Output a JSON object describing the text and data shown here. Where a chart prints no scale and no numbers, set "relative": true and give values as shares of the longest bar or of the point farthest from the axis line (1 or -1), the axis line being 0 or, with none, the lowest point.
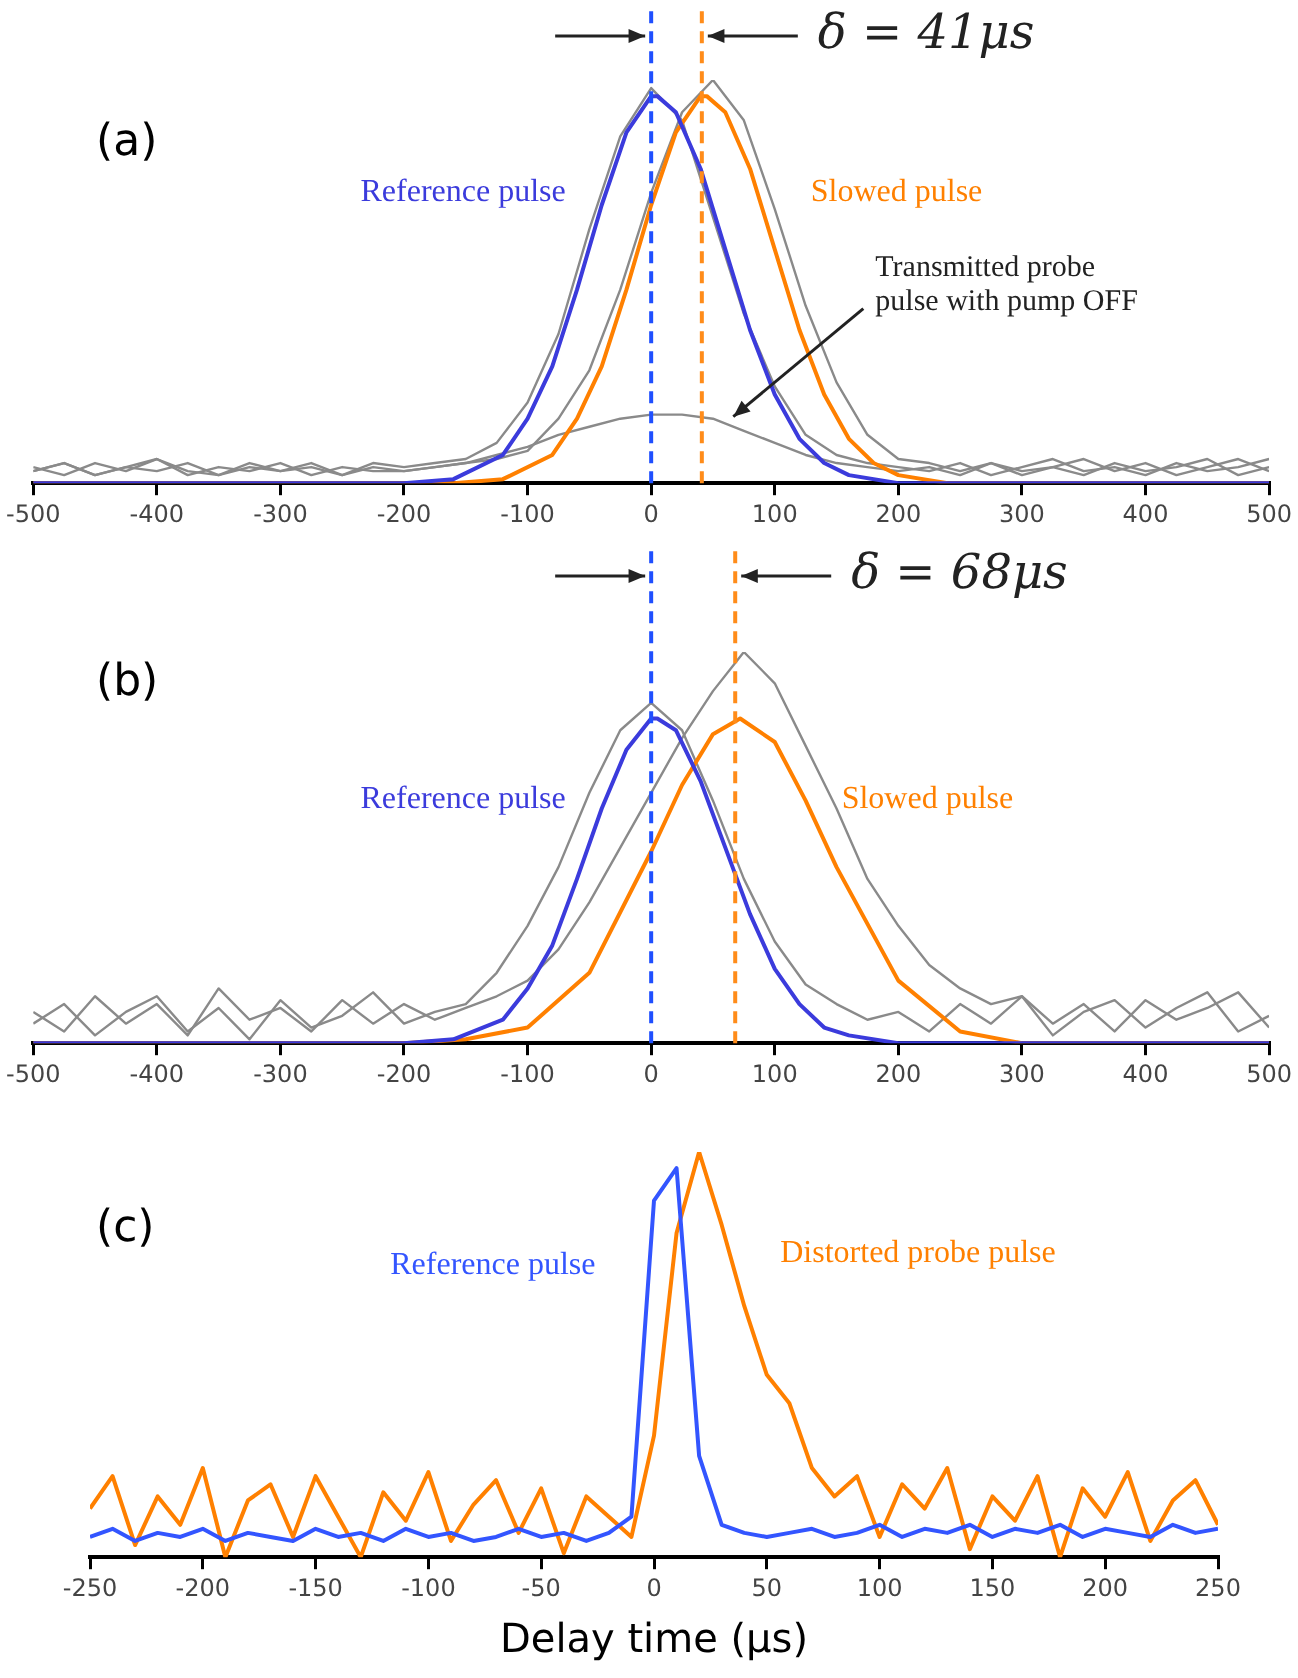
{
  "chart_data": [
    {
      "type": "line",
      "title": "(a)",
      "relative": true,
      "xlim": [
        -500,
        500
      ],
      "xticks": [
        -500,
        -400,
        -300,
        -200,
        -100,
        0,
        100,
        200,
        300,
        400,
        500
      ],
      "x": [
        -500,
        -475,
        -450,
        -425,
        -400,
        -375,
        -350,
        -325,
        -300,
        -275,
        -250,
        -225,
        -200,
        -175,
        -150,
        -125,
        -100,
        -75,
        -50,
        -25,
        0,
        25,
        50,
        75,
        100,
        125,
        150,
        175,
        200,
        225,
        250,
        275,
        300,
        325,
        350,
        375,
        400,
        425,
        450,
        475,
        500
      ],
      "series": [
        {
          "name": "Reference pulse",
          "color": "#3b3bdc",
          "x": [
            -500,
            -200,
            -160,
            -120,
            -100,
            -80,
            -60,
            -40,
            -20,
            0,
            5,
            20,
            40,
            60,
            80,
            100,
            120,
            140,
            160,
            200,
            500
          ],
          "values": [
            0,
            0,
            0.01,
            0.07,
            0.16,
            0.29,
            0.48,
            0.69,
            0.87,
            0.96,
            0.96,
            0.92,
            0.78,
            0.58,
            0.38,
            0.22,
            0.11,
            0.05,
            0.02,
            0,
            0
          ]
        },
        {
          "name": "Slowed pulse",
          "color": "#ff8000",
          "x": [
            -500,
            -160,
            -120,
            -80,
            -60,
            -40,
            -20,
            0,
            20,
            40,
            45,
            60,
            80,
            100,
            120,
            140,
            160,
            180,
            200,
            240,
            500
          ],
          "values": [
            0,
            0,
            0.01,
            0.07,
            0.16,
            0.29,
            0.48,
            0.69,
            0.87,
            0.96,
            0.96,
            0.92,
            0.78,
            0.58,
            0.38,
            0.22,
            0.11,
            0.05,
            0.02,
            0,
            0
          ]
        },
        {
          "color": "#8a8a8a",
          "values": [
            0.03,
            0.05,
            0.02,
            0.04,
            0.06,
            0.03,
            0.02,
            0.05,
            0.03,
            0.04,
            0.02,
            0.05,
            0.04,
            0.05,
            0.06,
            0.1,
            0.2,
            0.37,
            0.63,
            0.86,
            0.98,
            0.9,
            0.66,
            0.42,
            0.24,
            0.12,
            0.07,
            0.05,
            0.04,
            0.03,
            0.05,
            0.02,
            0.04,
            0.06,
            0.03,
            0.04,
            0.02,
            0.05,
            0.03,
            0.04,
            0.06
          ]
        },
        {
          "color": "#8a8a8a",
          "values": [
            0.04,
            0.02,
            0.05,
            0.03,
            0.06,
            0.02,
            0.04,
            0.03,
            0.05,
            0.02,
            0.04,
            0.03,
            0.03,
            0.04,
            0.05,
            0.06,
            0.08,
            0.16,
            0.28,
            0.48,
            0.72,
            0.92,
            1.0,
            0.9,
            0.68,
            0.44,
            0.25,
            0.12,
            0.06,
            0.05,
            0.03,
            0.05,
            0.02,
            0.04,
            0.06,
            0.03,
            0.05,
            0.02,
            0.04,
            0.06,
            0.03
          ]
        },
        {
          "color": "#8a8a8a",
          "values": [
            0.03,
            0.05,
            0.02,
            0.04,
            0.03,
            0.05,
            0.02,
            0.04,
            0.03,
            0.05,
            0.02,
            0.04,
            0.03,
            0.04,
            0.05,
            0.07,
            0.09,
            0.12,
            0.14,
            0.16,
            0.17,
            0.17,
            0.16,
            0.13,
            0.1,
            0.07,
            0.05,
            0.04,
            0.03,
            0.04,
            0.02,
            0.05,
            0.03,
            0.04,
            0.02,
            0.05,
            0.03,
            0.04,
            0.06,
            0.02,
            0.04
          ]
        }
      ],
      "ref_lines": [
        {
          "axis": "x",
          "value": 0,
          "color": "#1f4fff",
          "line_style": "dashed"
        },
        {
          "axis": "x",
          "value": 41,
          "color": "#ff8c1a",
          "line_style": "dashed"
        }
      ],
      "annotations": [
        "δ = 41μs",
        {
          "text": "Transmitted probe pulse with pump OFF",
          "x": 60,
          "y": 0.15
        }
      ]
    },
    {
      "type": "line",
      "title": "(b)",
      "relative": true,
      "xlim": [
        -500,
        500
      ],
      "xticks": [
        -500,
        -400,
        -300,
        -200,
        -100,
        0,
        100,
        200,
        300,
        400,
        500
      ],
      "x": [
        -500,
        -475,
        -450,
        -425,
        -400,
        -375,
        -350,
        -325,
        -300,
        -275,
        -250,
        -225,
        -200,
        -175,
        -150,
        -125,
        -100,
        -75,
        -50,
        -25,
        0,
        25,
        50,
        75,
        100,
        125,
        150,
        175,
        200,
        225,
        250,
        275,
        300,
        325,
        350,
        375,
        400,
        425,
        450,
        475,
        500
      ],
      "series": [
        {
          "name": "Reference pulse",
          "color": "#3b3bdc",
          "x": [
            -500,
            -200,
            -160,
            -120,
            -100,
            -80,
            -60,
            -40,
            -20,
            0,
            5,
            20,
            40,
            60,
            80,
            100,
            120,
            140,
            160,
            200,
            500
          ],
          "values": [
            0,
            0,
            0.01,
            0.06,
            0.14,
            0.25,
            0.42,
            0.6,
            0.75,
            0.83,
            0.83,
            0.8,
            0.67,
            0.5,
            0.33,
            0.19,
            0.1,
            0.04,
            0.02,
            0,
            0
          ]
        },
        {
          "name": "Slowed pulse",
          "color": "#ff8000",
          "x": [
            -500,
            -200,
            -150,
            -100,
            -50,
            0,
            25,
            50,
            72,
            100,
            125,
            150,
            200,
            250,
            300,
            500
          ],
          "values": [
            0,
            0,
            0.01,
            0.04,
            0.18,
            0.49,
            0.66,
            0.79,
            0.83,
            0.77,
            0.62,
            0.45,
            0.16,
            0.03,
            0,
            0
          ]
        },
        {
          "color": "#8a8a8a",
          "values": [
            0.05,
            0.1,
            0.02,
            0.08,
            0.12,
            0.03,
            0.09,
            0.01,
            0.11,
            0.04,
            0.07,
            0.13,
            0.05,
            0.08,
            0.1,
            0.18,
            0.3,
            0.45,
            0.64,
            0.8,
            0.87,
            0.8,
            0.62,
            0.42,
            0.26,
            0.15,
            0.1,
            0.06,
            0.08,
            0.03,
            0.1,
            0.05,
            0.12,
            0.02,
            0.08,
            0.11,
            0.04,
            0.09,
            0.13,
            0.03,
            0.07
          ]
        },
        {
          "color": "#8a8a8a",
          "values": [
            0.08,
            0.03,
            0.12,
            0.05,
            0.1,
            0.02,
            0.14,
            0.06,
            0.09,
            0.03,
            0.11,
            0.05,
            0.1,
            0.06,
            0.09,
            0.12,
            0.16,
            0.24,
            0.36,
            0.5,
            0.64,
            0.78,
            0.9,
            1.0,
            0.92,
            0.76,
            0.6,
            0.42,
            0.3,
            0.2,
            0.14,
            0.1,
            0.12,
            0.05,
            0.1,
            0.03,
            0.11,
            0.06,
            0.09,
            0.13,
            0.04
          ]
        }
      ],
      "ref_lines": [
        {
          "axis": "x",
          "value": 0,
          "color": "#1f4fff",
          "line_style": "dashed"
        },
        {
          "axis": "x",
          "value": 68,
          "color": "#ff8c1a",
          "line_style": "dashed"
        }
      ],
      "annotations": [
        "δ = 68μs"
      ]
    },
    {
      "type": "line",
      "title": "(c)",
      "relative": true,
      "xlabel": "Delay time (μs)",
      "xlim": [
        -250,
        250
      ],
      "xticks": [
        -250,
        -200,
        -150,
        -100,
        -50,
        0,
        50,
        100,
        150,
        200,
        250
      ],
      "x": [
        -250,
        -240,
        -230,
        -220,
        -210,
        -200,
        -190,
        -180,
        -170,
        -160,
        -150,
        -140,
        -130,
        -120,
        -110,
        -100,
        -90,
        -80,
        -70,
        -60,
        -50,
        -40,
        -30,
        -20,
        -10,
        0,
        10,
        20,
        30,
        40,
        50,
        60,
        70,
        80,
        90,
        100,
        110,
        120,
        130,
        140,
        150,
        160,
        170,
        180,
        190,
        200,
        210,
        220,
        230,
        240,
        250
      ],
      "series": [
        {
          "name": "Reference pulse",
          "color": "#3355ff",
          "values": [
            0.05,
            0.07,
            0.04,
            0.06,
            0.05,
            0.07,
            0.04,
            0.06,
            0.05,
            0.04,
            0.07,
            0.05,
            0.06,
            0.04,
            0.07,
            0.05,
            0.06,
            0.04,
            0.05,
            0.07,
            0.05,
            0.06,
            0.04,
            0.06,
            0.1,
            0.88,
            0.96,
            0.25,
            0.08,
            0.06,
            0.05,
            0.06,
            0.07,
            0.05,
            0.06,
            0.08,
            0.05,
            0.07,
            0.06,
            0.08,
            0.05,
            0.07,
            0.06,
            0.08,
            0.05,
            0.07,
            0.06,
            0.05,
            0.08,
            0.06,
            0.07
          ]
        },
        {
          "name": "Distorted probe pulse",
          "color": "#ff8000",
          "values": [
            0.12,
            0.2,
            0.03,
            0.15,
            0.08,
            0.22,
            0.0,
            0.14,
            0.18,
            0.05,
            0.2,
            0.1,
            0.0,
            0.16,
            0.09,
            0.21,
            0.04,
            0.13,
            0.19,
            0.06,
            0.17,
            0.01,
            0.15,
            0.1,
            0.05,
            0.3,
            0.8,
            1.0,
            0.82,
            0.62,
            0.45,
            0.38,
            0.22,
            0.15,
            0.2,
            0.05,
            0.18,
            0.12,
            0.22,
            0.02,
            0.15,
            0.09,
            0.2,
            0.0,
            0.17,
            0.1,
            0.21,
            0.04,
            0.14,
            0.19,
            0.08
          ]
        }
      ]
    }
  ]
}
